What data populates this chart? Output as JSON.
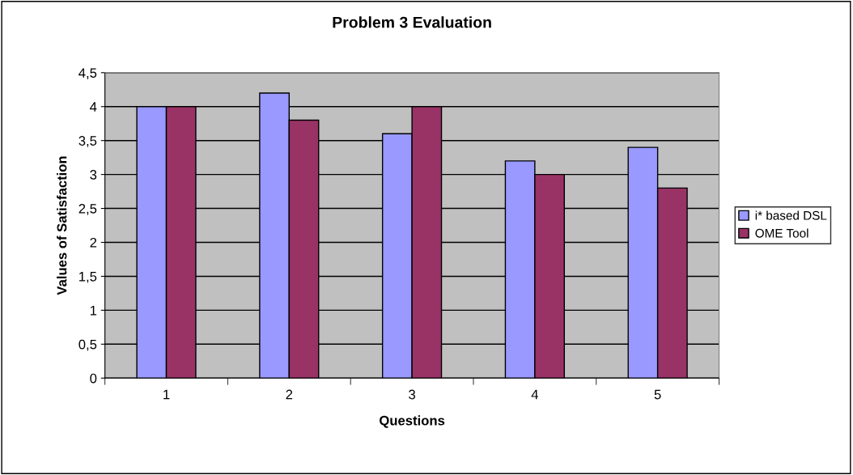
{
  "chart_data": {
    "type": "bar",
    "title": "Problem 3 Evaluation",
    "xlabel": "Questions",
    "ylabel": "Values of Satisfaction",
    "categories": [
      "1",
      "2",
      "3",
      "4",
      "5"
    ],
    "series": [
      {
        "name": "i* based DSL",
        "color": "#9999ff",
        "values": [
          4,
          4.2,
          3.6,
          3.2,
          3.4
        ]
      },
      {
        "name": "OME Tool",
        "color": "#993366",
        "values": [
          4,
          3.8,
          4,
          3,
          2.8
        ]
      }
    ],
    "ylim": [
      0,
      4.5
    ],
    "yticks": [
      0,
      {
        "value": 0.5,
        "label": "0,5"
      },
      1,
      {
        "value": 1.5,
        "label": "1,5"
      },
      2,
      {
        "value": 2.5,
        "label": "2,5"
      },
      3,
      {
        "value": 3.5,
        "label": "3,5"
      },
      4,
      {
        "value": 4.5,
        "label": "4,5"
      }
    ],
    "grid": "y",
    "legend": "right"
  }
}
